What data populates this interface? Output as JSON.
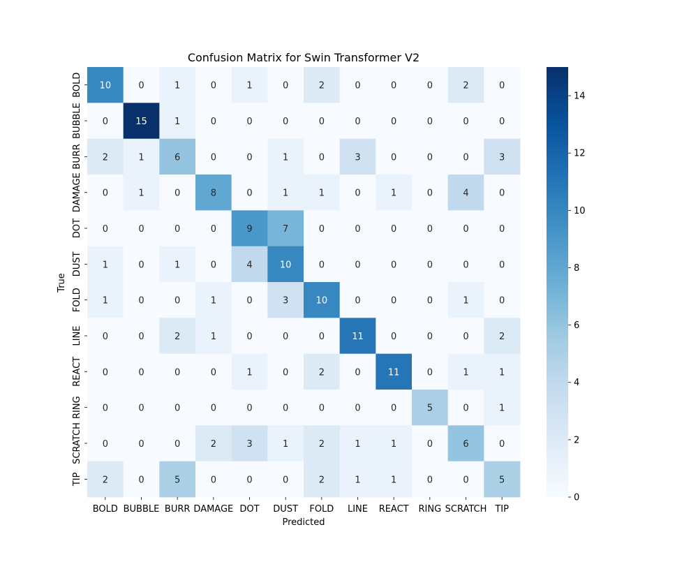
{
  "chart_data": {
    "type": "heatmap",
    "title": "Confusion Matrix for Swin Transformer V2",
    "xlabel": "Predicted",
    "ylabel": "True",
    "x_categories": [
      "BOLD",
      "BUBBLE",
      "BURR",
      "DAMAGE",
      "DOT",
      "DUST",
      "FOLD",
      "LINE",
      "REACT",
      "RING",
      "SCRATCH",
      "TIP"
    ],
    "y_categories": [
      "BOLD",
      "BUBBLE",
      "BURR",
      "DAMAGE",
      "DOT",
      "DUST",
      "FOLD",
      "LINE",
      "REACT",
      "RING",
      "SCRATCH",
      "TIP"
    ],
    "values": [
      [
        10,
        0,
        1,
        0,
        1,
        0,
        2,
        0,
        0,
        0,
        2,
        0
      ],
      [
        0,
        15,
        1,
        0,
        0,
        0,
        0,
        0,
        0,
        0,
        0,
        0
      ],
      [
        2,
        1,
        6,
        0,
        0,
        1,
        0,
        3,
        0,
        0,
        0,
        3
      ],
      [
        0,
        1,
        0,
        8,
        0,
        1,
        1,
        0,
        1,
        0,
        4,
        0
      ],
      [
        0,
        0,
        0,
        0,
        9,
        7,
        0,
        0,
        0,
        0,
        0,
        0
      ],
      [
        1,
        0,
        1,
        0,
        4,
        10,
        0,
        0,
        0,
        0,
        0,
        0
      ],
      [
        1,
        0,
        0,
        1,
        0,
        3,
        10,
        0,
        0,
        0,
        1,
        0
      ],
      [
        0,
        0,
        2,
        1,
        0,
        0,
        0,
        11,
        0,
        0,
        0,
        2
      ],
      [
        0,
        0,
        0,
        0,
        1,
        0,
        2,
        0,
        11,
        0,
        1,
        1
      ],
      [
        0,
        0,
        0,
        0,
        0,
        0,
        0,
        0,
        0,
        5,
        0,
        1
      ],
      [
        0,
        0,
        0,
        2,
        3,
        1,
        2,
        1,
        1,
        0,
        6,
        0
      ],
      [
        2,
        0,
        5,
        0,
        0,
        0,
        2,
        1,
        1,
        0,
        0,
        5
      ]
    ],
    "colormap": "Blues",
    "colorbar": {
      "range": [
        0,
        15
      ],
      "ticks": [
        0,
        2,
        4,
        6,
        8,
        10,
        12,
        14
      ]
    },
    "grid": false
  }
}
